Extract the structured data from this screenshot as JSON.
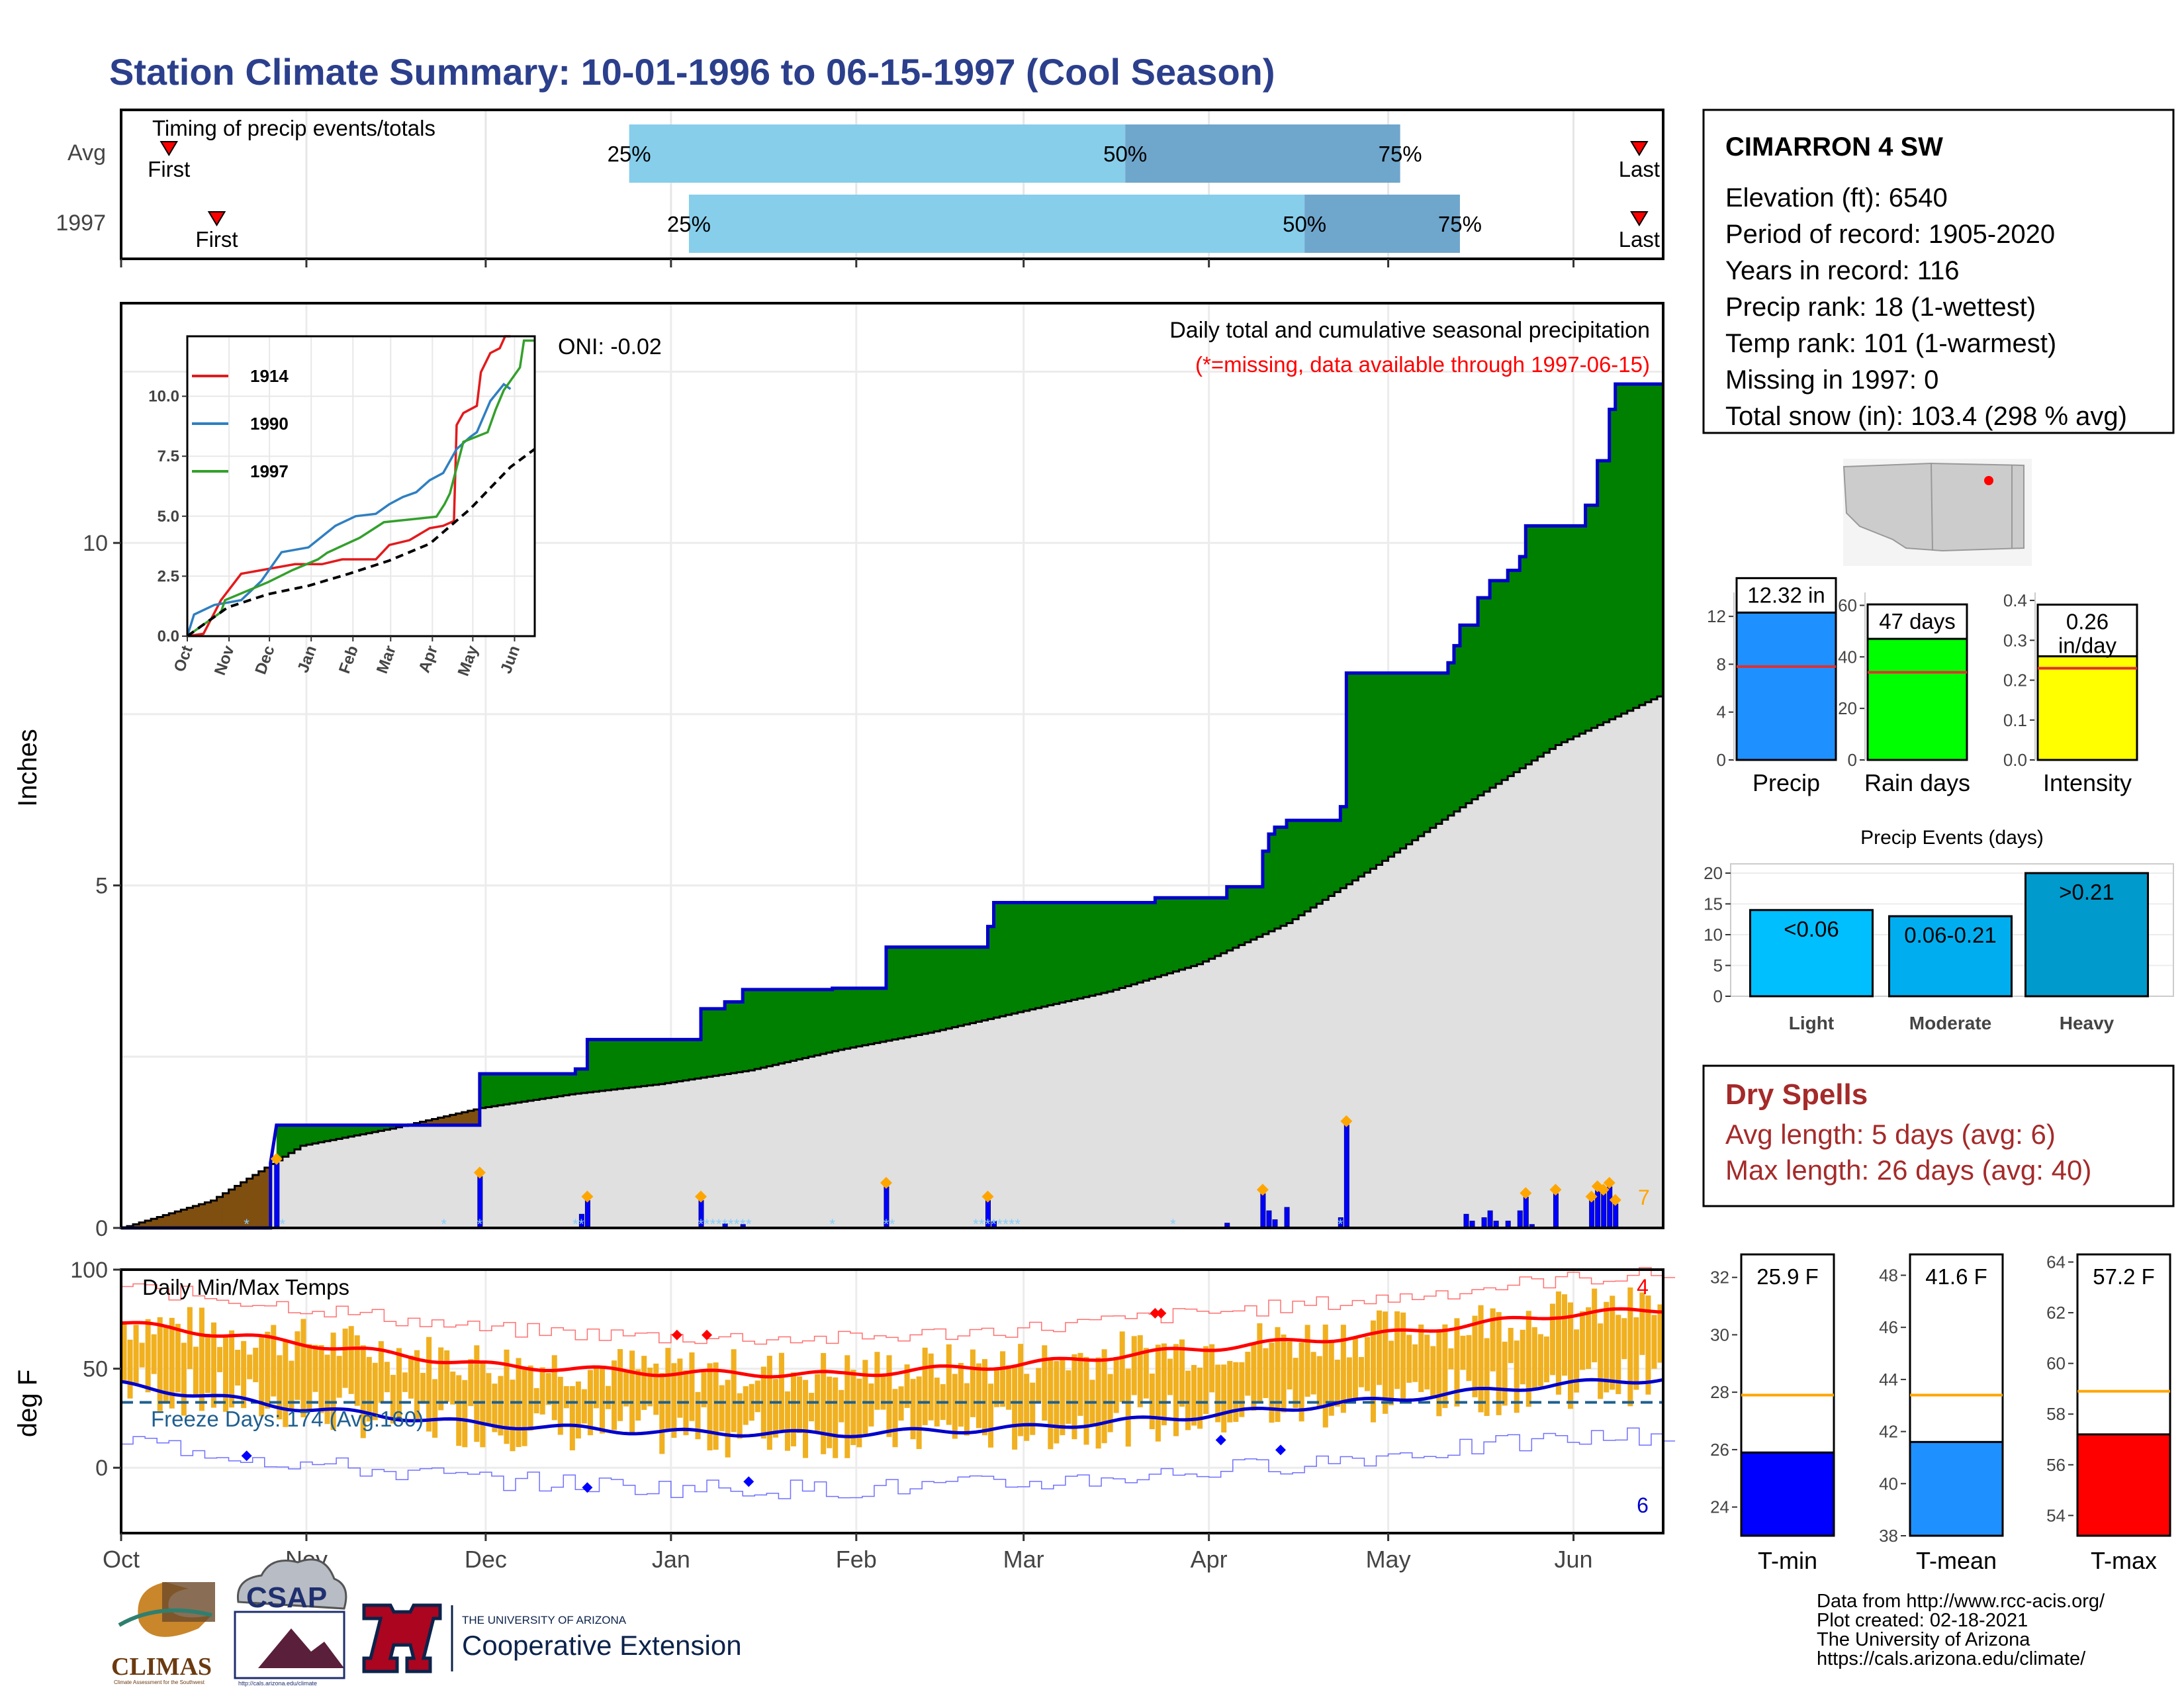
{
  "title": "Station Climate Summary: 10-01-1996 to 06-15-1997 (Cool Season)",
  "colors": {
    "title": "#2b3f8c",
    "cumulative_fill": "#008000",
    "deficit_fill": "#7f4f10",
    "avg_fill": "#e0e0e0",
    "cum_line": "#0000cc",
    "daily_bar": "#0000ff",
    "daily_bar_light": "#87cefa",
    "marker_orange": "#ffa500",
    "temp_bar": "#f0b020",
    "tmax_line": "#ff0000",
    "tmin_line": "#0000cc",
    "freeze_line": "#1f5f8f",
    "dry_spells": "#a52a2a",
    "timing_light": "#87ceeb",
    "timing_dark": "#6fa6cc"
  },
  "timing_panel": {
    "title": "Timing of precip events/totals",
    "rows": [
      {
        "label": "Avg",
        "first_label": "First",
        "last_label": "Last",
        "first_doy": 8,
        "last_doy": 254,
        "p25": 85,
        "p50": 168,
        "p75": 214,
        "l25": "25%",
        "l50": "50%",
        "l75": "75%"
      },
      {
        "label": "1997",
        "first_label": "First",
        "last_label": "Last",
        "first_doy": 16,
        "last_doy": 254,
        "p25": 95,
        "p50": 198,
        "p75": 224,
        "l25": "25%",
        "l50": "50%",
        "l75": "75%"
      }
    ]
  },
  "precip_panel": {
    "ylabel": "Inches",
    "annotation_title": "Daily total and cumulative seasonal precipitation",
    "annotation_missing": "(*=missing, data available through 1997-06-15)",
    "oni": "ONI: -0.02",
    "corner_count": "7",
    "y_ticks": [
      "0",
      "5",
      "10"
    ],
    "ylim": [
      0,
      13.5
    ],
    "x_ticks": [
      "Oct",
      "Nov",
      "Dec",
      "Jan",
      "Feb",
      "Mar",
      "Apr",
      "May",
      "Jun"
    ]
  },
  "chart_data": [
    {
      "type": "area",
      "title": "Daily total and cumulative seasonal precipitation",
      "ylabel": "Inches",
      "xlim_doy": [
        0,
        258
      ],
      "ylim": [
        0,
        13.5
      ],
      "cumulative_1997": [
        [
          0,
          0
        ],
        [
          25,
          0
        ],
        [
          25,
          0.95
        ],
        [
          26,
          1.5
        ],
        [
          53,
          1.5
        ],
        [
          53,
          1.5
        ],
        [
          60,
          1.5
        ],
        [
          60,
          2.25
        ],
        [
          76,
          2.25
        ],
        [
          76,
          2.32
        ],
        [
          78,
          2.32
        ],
        [
          78,
          2.75
        ],
        [
          97,
          2.75
        ],
        [
          97,
          3.2
        ],
        [
          101,
          3.2
        ],
        [
          101,
          3.3
        ],
        [
          104,
          3.3
        ],
        [
          104,
          3.48
        ],
        [
          119,
          3.48
        ],
        [
          119,
          3.5
        ],
        [
          128,
          3.5
        ],
        [
          128,
          4.1
        ],
        [
          145,
          4.1
        ],
        [
          145,
          4.4
        ],
        [
          146,
          4.4
        ],
        [
          146,
          4.75
        ],
        [
          173,
          4.75
        ],
        [
          173,
          4.82
        ],
        [
          185,
          4.82
        ],
        [
          185,
          4.98
        ],
        [
          191,
          4.98
        ],
        [
          191,
          5.5
        ],
        [
          192,
          5.5
        ],
        [
          192,
          5.75
        ],
        [
          193,
          5.75
        ],
        [
          193,
          5.85
        ],
        [
          195,
          5.85
        ],
        [
          195,
          5.95
        ],
        [
          204,
          5.95
        ],
        [
          204,
          6.15
        ],
        [
          205,
          6.15
        ],
        [
          205,
          8.1
        ],
        [
          222,
          8.1
        ],
        [
          222,
          8.25
        ],
        [
          223,
          8.25
        ],
        [
          223,
          8.5
        ],
        [
          224,
          8.5
        ],
        [
          224,
          8.8
        ],
        [
          227,
          8.8
        ],
        [
          227,
          9.2
        ],
        [
          229,
          9.2
        ],
        [
          229,
          9.45
        ],
        [
          232,
          9.45
        ],
        [
          232,
          9.6
        ],
        [
          234,
          9.6
        ],
        [
          234,
          9.8
        ],
        [
          235,
          9.8
        ],
        [
          235,
          10.25
        ],
        [
          245,
          10.25
        ],
        [
          245,
          10.55
        ],
        [
          247,
          10.55
        ],
        [
          247,
          11.2
        ],
        [
          249,
          11.2
        ],
        [
          249,
          11.95
        ],
        [
          250,
          11.95
        ],
        [
          250,
          12.32
        ],
        [
          258,
          12.32
        ]
      ],
      "average_cumulative": [
        [
          0,
          0
        ],
        [
          15,
          0.4
        ],
        [
          30,
          1.2
        ],
        [
          45,
          1.45
        ],
        [
          60,
          1.75
        ],
        [
          75,
          1.95
        ],
        [
          90,
          2.1
        ],
        [
          105,
          2.3
        ],
        [
          120,
          2.6
        ],
        [
          135,
          2.85
        ],
        [
          150,
          3.15
        ],
        [
          165,
          3.45
        ],
        [
          180,
          3.85
        ],
        [
          195,
          4.45
        ],
        [
          210,
          5.3
        ],
        [
          225,
          6.2
        ],
        [
          240,
          7.05
        ],
        [
          258,
          7.8
        ]
      ],
      "daily_bars": [
        [
          26,
          0.95
        ],
        [
          60,
          0.75
        ],
        [
          77,
          0.2
        ],
        [
          78,
          0.4
        ],
        [
          97,
          0.4
        ],
        [
          101,
          0.06
        ],
        [
          104,
          0.05
        ],
        [
          128,
          0.6
        ],
        [
          145,
          0.4
        ],
        [
          146,
          0.1
        ],
        [
          185,
          0.07
        ],
        [
          191,
          0.5
        ],
        [
          192,
          0.25
        ],
        [
          193,
          0.12
        ],
        [
          195,
          0.3
        ],
        [
          204,
          0.15
        ],
        [
          205,
          1.5
        ],
        [
          225,
          0.2
        ],
        [
          226,
          0.1
        ],
        [
          228,
          0.15
        ],
        [
          229,
          0.25
        ],
        [
          230,
          0.1
        ],
        [
          232,
          0.1
        ],
        [
          234,
          0.25
        ],
        [
          235,
          0.45
        ],
        [
          236,
          0.05
        ],
        [
          240,
          0.5
        ],
        [
          246,
          0.4
        ],
        [
          247,
          0.55
        ],
        [
          248,
          0.5
        ],
        [
          249,
          0.6
        ],
        [
          250,
          0.35
        ]
      ],
      "missing_marks_doy": [
        21,
        27,
        54,
        60,
        76,
        77,
        97,
        98,
        99,
        100,
        101,
        102,
        103,
        104,
        105,
        119,
        128,
        129,
        143,
        144,
        145,
        146,
        147,
        148,
        149,
        150,
        176,
        204
      ]
    },
    {
      "type": "line",
      "title": "",
      "series": [
        {
          "name": "1914",
          "color": "#e31a1c",
          "values": [
            [
              0,
              0
            ],
            [
              12,
              0.1
            ],
            [
              25,
              1.5
            ],
            [
              40,
              2.6
            ],
            [
              60,
              2.8
            ],
            [
              80,
              3.0
            ],
            [
              100,
              3.0
            ],
            [
              115,
              3.2
            ],
            [
              140,
              3.2
            ],
            [
              150,
              3.8
            ],
            [
              165,
              4.0
            ],
            [
              180,
              4.5
            ],
            [
              190,
              4.6
            ],
            [
              198,
              4.8
            ],
            [
              200,
              8.8
            ],
            [
              205,
              9.3
            ],
            [
              215,
              9.6
            ],
            [
              218,
              11.0
            ],
            [
              225,
              11.8
            ],
            [
              232,
              12.0
            ],
            [
              236,
              12.5
            ],
            [
              240,
              12.5
            ]
          ]
        },
        {
          "name": "1990",
          "color": "#2f7fc1",
          "values": [
            [
              0,
              0
            ],
            [
              5,
              0.9
            ],
            [
              20,
              1.3
            ],
            [
              40,
              1.5
            ],
            [
              55,
              2.3
            ],
            [
              70,
              3.5
            ],
            [
              90,
              3.7
            ],
            [
              110,
              4.6
            ],
            [
              125,
              5.0
            ],
            [
              140,
              5.1
            ],
            [
              150,
              5.5
            ],
            [
              160,
              5.8
            ],
            [
              170,
              6.0
            ],
            [
              180,
              6.5
            ],
            [
              190,
              6.8
            ],
            [
              200,
              7.8
            ],
            [
              210,
              8.3
            ],
            [
              215,
              8.5
            ],
            [
              225,
              9.8
            ],
            [
              235,
              10.5
            ],
            [
              240,
              10.3
            ]
          ]
        },
        {
          "name": "1997",
          "color": "#33a02c",
          "values": [
            [
              0,
              0
            ],
            [
              25,
              1.0
            ],
            [
              28,
              1.5
            ],
            [
              60,
              2.25
            ],
            [
              78,
              2.75
            ],
            [
              97,
              3.2
            ],
            [
              104,
              3.48
            ],
            [
              128,
              4.1
            ],
            [
              146,
              4.75
            ],
            [
              185,
              4.98
            ],
            [
              191,
              5.5
            ],
            [
              195,
              5.95
            ],
            [
              205,
              8.1
            ],
            [
              223,
              8.5
            ],
            [
              229,
              9.45
            ],
            [
              235,
              10.25
            ],
            [
              247,
              11.2
            ],
            [
              250,
              12.32
            ],
            [
              258,
              12.32
            ]
          ]
        },
        {
          "name": "",
          "color": "#000000",
          "dashed": true,
          "values": [
            [
              0,
              0
            ],
            [
              30,
              1.2
            ],
            [
              60,
              1.75
            ],
            [
              90,
              2.1
            ],
            [
              120,
              2.6
            ],
            [
              150,
              3.15
            ],
            [
              180,
              3.85
            ],
            [
              210,
              5.3
            ],
            [
              240,
              7.05
            ],
            [
              258,
              7.8
            ]
          ]
        }
      ],
      "y_ticks": [
        "0.0",
        "2.5",
        "5.0",
        "7.5",
        "10.0"
      ],
      "ylim": [
        0,
        12.5
      ],
      "x_ticks": [
        "Oct",
        "Nov",
        "Dec",
        "Jan",
        "Feb",
        "Mar",
        "Apr",
        "May",
        "Jun"
      ]
    },
    {
      "type": "bar",
      "title": "Daily Min/Max Temps",
      "ylabel": "deg F",
      "ylim": [
        -33,
        100
      ],
      "y_ticks": [
        "0",
        "50",
        "100"
      ],
      "freeze_line": 33,
      "avg_tmax": [
        [
          0,
          73
        ],
        [
          30,
          63
        ],
        [
          60,
          52
        ],
        [
          90,
          48
        ],
        [
          120,
          47
        ],
        [
          150,
          52
        ],
        [
          180,
          60
        ],
        [
          210,
          67
        ],
        [
          240,
          77
        ],
        [
          258,
          80
        ]
      ],
      "avg_tmin": [
        [
          0,
          42
        ],
        [
          30,
          30
        ],
        [
          60,
          22
        ],
        [
          90,
          18
        ],
        [
          120,
          17
        ],
        [
          150,
          20
        ],
        [
          180,
          26
        ],
        [
          210,
          34
        ],
        [
          240,
          42
        ],
        [
          258,
          45
        ]
      ],
      "record_max_marks": [
        [
          98,
          67
        ],
        [
          93,
          67
        ],
        [
          173,
          78
        ],
        [
          174,
          78
        ]
      ],
      "record_min_marks": [
        [
          21,
          6
        ],
        [
          78,
          -10
        ],
        [
          105,
          -7
        ],
        [
          184,
          14
        ],
        [
          194,
          9
        ]
      ]
    },
    {
      "type": "bar",
      "title": "",
      "categories": [
        "Precip",
        "Rain days",
        "Intensity"
      ],
      "values": [
        12.32,
        47,
        0.26
      ],
      "averages": [
        7.8,
        34,
        0.23
      ],
      "labels": [
        "12.32 in",
        "47 days",
        "0.26 in/day"
      ]
    },
    {
      "type": "bar",
      "title": "Precip Events (days)",
      "categories": [
        "Light",
        "Moderate",
        "Heavy"
      ],
      "values": [
        14,
        13,
        20
      ],
      "labels": [
        "<0.06",
        "0.06-0.21",
        ">0.21"
      ],
      "ylim": [
        0,
        21
      ]
    },
    {
      "type": "bar",
      "title": "",
      "categories": [
        "T-min",
        "T-mean",
        "T-max"
      ],
      "values": [
        25.9,
        41.6,
        57.2
      ],
      "averages": [
        27.9,
        43.4,
        58.9
      ],
      "labels": [
        "25.9 F",
        "41.6 F",
        "57.2 F"
      ]
    }
  ],
  "temp_panel": {
    "label": "Daily Min/Max Temps",
    "ylabel": "deg F",
    "freeze_text": "Freeze Days: 174 (Avg:160)",
    "count_max": "4",
    "count_min": "6",
    "y_ticks": [
      "0",
      "50",
      "100"
    ],
    "x_ticks": [
      "Oct",
      "Nov",
      "Dec",
      "Jan",
      "Feb",
      "Mar",
      "Apr",
      "May",
      "Jun"
    ]
  },
  "station_box": {
    "name": "CIMARRON 4 SW",
    "lines": [
      "Elevation (ft): 6540",
      "Period of record: 1905-2020",
      "Years in record: 116",
      "Precip rank: 18 (1-wettest)",
      "Temp rank: 101 (1-warmest)",
      "Missing in 1997: 0",
      "Total snow (in): 103.4 (298 % avg)"
    ]
  },
  "summary_bars": {
    "precip": {
      "axis": [
        "0",
        "4",
        "8",
        "12"
      ],
      "label": "12.32 in",
      "name": "Precip"
    },
    "raindays": {
      "axis": [
        "0",
        "20",
        "40",
        "60"
      ],
      "label": "47 days",
      "name": "Rain days"
    },
    "intensity": {
      "axis": [
        "0.0",
        "0.1",
        "0.2",
        "0.3",
        "0.4"
      ],
      "label_line1": "0.26",
      "label_line2": "in/day",
      "name": "Intensity"
    }
  },
  "events_panel": {
    "title": "Precip Events (days)",
    "axis": [
      "0",
      "5",
      "10",
      "15",
      "20"
    ],
    "bars": [
      {
        "name": "Light",
        "label": "<0.06"
      },
      {
        "name": "Moderate",
        "label": "0.06-0.21"
      },
      {
        "name": "Heavy",
        "label": ">0.21"
      }
    ]
  },
  "dry_spells": {
    "title": "Dry Spells",
    "avg": "Avg length: 5 days (avg: 6)",
    "max": "Max length: 26 days (avg: 40)"
  },
  "temp_summary": {
    "tmin": {
      "axis": [
        "24",
        "26",
        "28",
        "30",
        "32"
      ],
      "label": "25.9 F",
      "name": "T-min"
    },
    "tmean": {
      "axis": [
        "38",
        "40",
        "42",
        "44",
        "46",
        "48"
      ],
      "label": "41.6 F",
      "name": "T-mean"
    },
    "tmax": {
      "axis": [
        "54",
        "56",
        "58",
        "60",
        "62",
        "64"
      ],
      "label": "57.2 F",
      "name": "T-max"
    }
  },
  "footer": {
    "source": "Data from http://www.rcc-acis.org/",
    "created": "Plot created: 02-18-2021",
    "org": "The University of Arizona",
    "url": "https://cals.arizona.edu/climate/"
  },
  "logos": {
    "climas": "CLIMAS",
    "climas_sub": "Climate Assessment for the Southwest",
    "csap": "CSAP",
    "csap_url": "http://cals.arizona.edu/climate",
    "ua_small": "THE UNIVERSITY OF ARIZONA",
    "coop": "Cooperative Extension"
  }
}
